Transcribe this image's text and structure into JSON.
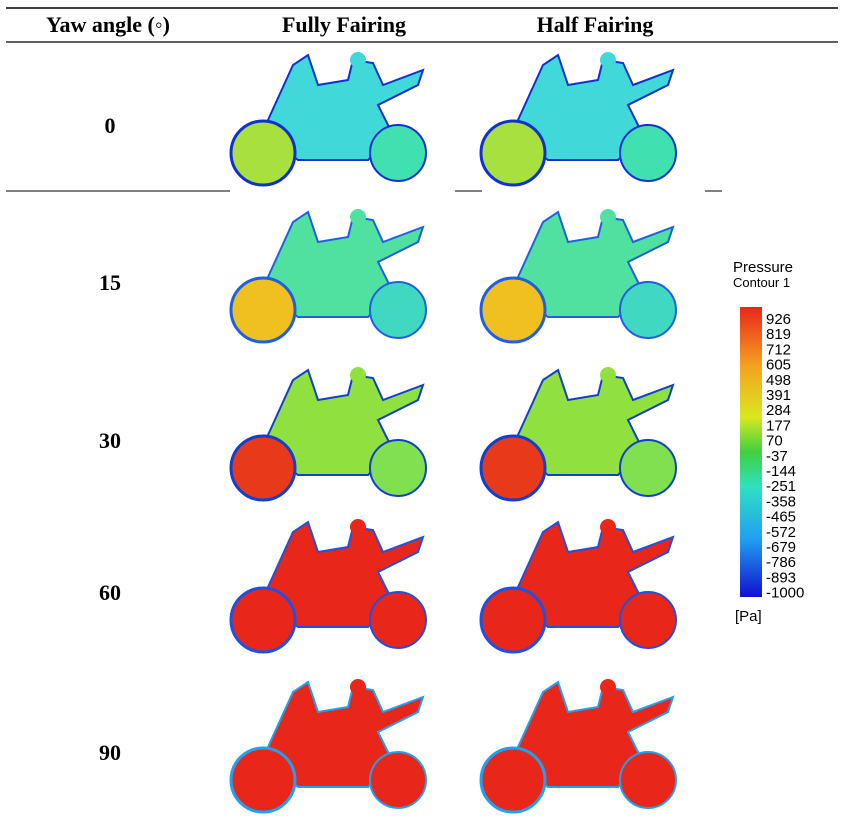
{
  "table": {
    "header": [
      "Yaw angle (◦)",
      "Fully Fairing",
      "Half Fairing"
    ],
    "rows": [
      "0",
      "15",
      "30",
      "60",
      "90"
    ]
  },
  "legend": {
    "title": "Pressure",
    "subtitle": "Contour 1",
    "ticks": [
      926,
      819,
      712,
      605,
      498,
      391,
      284,
      177,
      70,
      -37,
      -144,
      -251,
      -358,
      -465,
      -572,
      -679,
      -786,
      -893,
      -1000
    ],
    "unit": "[Pa]"
  }
}
